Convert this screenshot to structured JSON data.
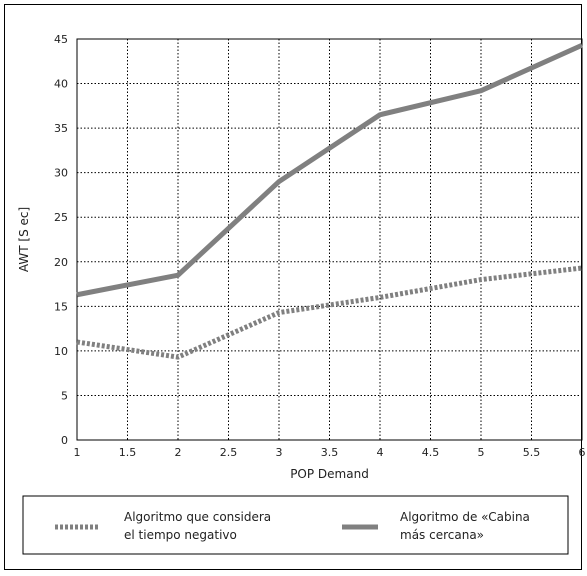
{
  "chart_data": {
    "type": "line",
    "xlabel": "POP Demand",
    "ylabel": "AWT [S ec]",
    "xlim": [
      1,
      6
    ],
    "ylim": [
      0,
      45
    ],
    "xticks": [
      "1",
      "1.5",
      "2",
      "2.5",
      "3",
      "3.5",
      "4",
      "4.5",
      "5",
      "5.5",
      "6"
    ],
    "yticks": [
      "0",
      "5",
      "10",
      "15",
      "20",
      "25",
      "30",
      "35",
      "40",
      "45"
    ],
    "grid": true,
    "legend_position": "bottom",
    "series": [
      {
        "legend_lines": [
          "Algoritmo que considera",
          "el tiempo negativo"
        ],
        "style": "dotted",
        "color": "#808080",
        "x": [
          1,
          2,
          3,
          4,
          5,
          6
        ],
        "y": [
          11,
          9.3,
          14.3,
          16,
          18,
          19.3
        ]
      },
      {
        "legend_lines": [
          "Algoritmo de «Cabina",
          "más cercana»"
        ],
        "style": "solid",
        "color": "#808080",
        "x": [
          1,
          2,
          3,
          4,
          5,
          6
        ],
        "y": [
          16.3,
          18.5,
          29,
          36.5,
          39.2,
          44.3
        ]
      }
    ]
  }
}
